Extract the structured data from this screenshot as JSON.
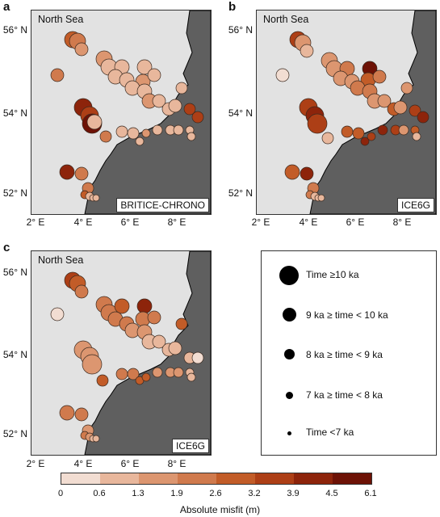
{
  "panels": [
    {
      "letter": "a",
      "sea_label": "North Sea",
      "model": "BRITICE-CHRONO"
    },
    {
      "letter": "b",
      "sea_label": "North Sea",
      "model": "ICE6G"
    },
    {
      "letter": "c",
      "sea_label": "North Sea",
      "model": "ICE6G"
    }
  ],
  "axes": {
    "lat_ticks": [
      "56° N",
      "54° N",
      "52° N"
    ],
    "lon_ticks": [
      "2° E",
      "4° E",
      "6° E",
      "8° E"
    ]
  },
  "legend": {
    "title_entries": [
      "Time ≥10 ka",
      "9 ka ≥ time < 10 ka",
      "8 ka ≥ time < 9 ka",
      "7 ka ≥ time < 8 ka",
      "Time <7 ka"
    ]
  },
  "colorbar": {
    "ticks": [
      "0",
      "0.6",
      "1.3",
      "1.9",
      "2.6",
      "3.2",
      "3.9",
      "4.5",
      "6.1"
    ],
    "colors": [
      "#f2ddd2",
      "#e8b79c",
      "#dc9670",
      "#d07a4d",
      "#c25c28",
      "#ad3f16",
      "#8d240b",
      "#6d1206"
    ],
    "label": "Absolute misfit (m)"
  },
  "colors": {
    "sea": "#e2e2e2",
    "land": "#5f5f5f"
  }
}
